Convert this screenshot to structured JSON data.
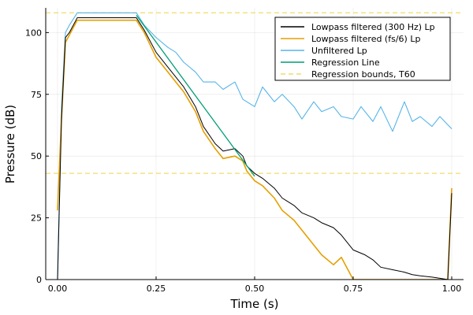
{
  "chart_data": {
    "type": "line",
    "xlabel": "Time (s)",
    "ylabel": "Pressure (dB)",
    "xlim": [
      -0.03,
      1.03
    ],
    "ylim": [
      0,
      110
    ],
    "xticks": [
      0.0,
      0.25,
      0.5,
      0.75,
      1.0
    ],
    "xtick_labels": [
      "0.00",
      "0.25",
      "0.50",
      "0.75",
      "1.00"
    ],
    "yticks": [
      0,
      25,
      50,
      75,
      100
    ],
    "ytick_labels": [
      "0",
      "25",
      "50",
      "75",
      "100"
    ],
    "grid": true,
    "legend_position": "top-right",
    "series": [
      {
        "name": "Lowpass filtered (300 Hz) Lp",
        "color": "#000000",
        "x": [
          0.0,
          0.01,
          0.02,
          0.03,
          0.05,
          0.1,
          0.15,
          0.2,
          0.22,
          0.25,
          0.28,
          0.3,
          0.32,
          0.35,
          0.37,
          0.4,
          0.42,
          0.45,
          0.47,
          0.48,
          0.5,
          0.52,
          0.55,
          0.57,
          0.6,
          0.62,
          0.65,
          0.67,
          0.7,
          0.72,
          0.75,
          0.78,
          0.8,
          0.82,
          0.85,
          0.88,
          0.9,
          0.92,
          0.95,
          0.97,
          0.99,
          1.0
        ],
        "y": [
          0,
          65,
          98,
          100,
          106,
          106,
          106,
          106,
          101,
          92,
          86,
          82,
          78,
          70,
          62,
          55,
          52,
          53,
          50,
          46,
          43,
          41,
          37,
          33,
          30,
          27,
          25,
          23,
          21,
          18,
          12,
          10,
          8,
          5,
          4,
          3,
          2,
          1.5,
          1,
          0.5,
          0,
          35
        ]
      },
      {
        "name": "Lowpass filtered (fs/6) Lp",
        "color": "#E69F00",
        "x": [
          0.0,
          0.01,
          0.02,
          0.03,
          0.05,
          0.1,
          0.15,
          0.2,
          0.22,
          0.25,
          0.28,
          0.3,
          0.32,
          0.35,
          0.37,
          0.4,
          0.42,
          0.45,
          0.47,
          0.48,
          0.5,
          0.52,
          0.55,
          0.57,
          0.6,
          0.62,
          0.65,
          0.67,
          0.7,
          0.72,
          0.75,
          0.77,
          0.8,
          0.85,
          0.9,
          0.95,
          0.99,
          1.0
        ],
        "y": [
          28,
          65,
          96,
          99,
          105,
          105,
          105,
          105,
          100,
          90,
          84,
          80,
          76,
          68,
          60,
          53,
          49,
          50,
          48,
          44,
          40,
          38,
          33,
          28,
          24,
          20,
          14,
          10,
          6,
          9,
          0,
          0,
          0,
          0,
          0,
          0,
          0,
          37
        ]
      },
      {
        "name": "Unfiltered Lp",
        "color": "#56B4E9",
        "x": [
          0.0,
          0.01,
          0.02,
          0.03,
          0.05,
          0.1,
          0.15,
          0.2,
          0.22,
          0.25,
          0.28,
          0.3,
          0.32,
          0.35,
          0.37,
          0.4,
          0.42,
          0.45,
          0.47,
          0.5,
          0.52,
          0.55,
          0.57,
          0.6,
          0.62,
          0.65,
          0.67,
          0.7,
          0.72,
          0.75,
          0.77,
          0.8,
          0.82,
          0.85,
          0.88,
          0.9,
          0.92,
          0.95,
          0.97,
          1.0
        ],
        "y": [
          0,
          70,
          100,
          103,
          108,
          108,
          108,
          108,
          103,
          98,
          94,
          92,
          88,
          84,
          80,
          80,
          77,
          80,
          73,
          70,
          78,
          72,
          75,
          70,
          65,
          72,
          68,
          70,
          66,
          65,
          70,
          64,
          70,
          60,
          72,
          64,
          66,
          62,
          66,
          61
        ]
      },
      {
        "name": "Regression Line",
        "color": "#009E73",
        "x": [
          0.2,
          0.5
        ],
        "y": [
          107,
          41.8
        ]
      }
    ],
    "reference_lines": [
      {
        "name": "Regression bounds, T60",
        "color": "#F0DC6A",
        "style": "dashed",
        "y": [
          108,
          43
        ]
      }
    ]
  }
}
